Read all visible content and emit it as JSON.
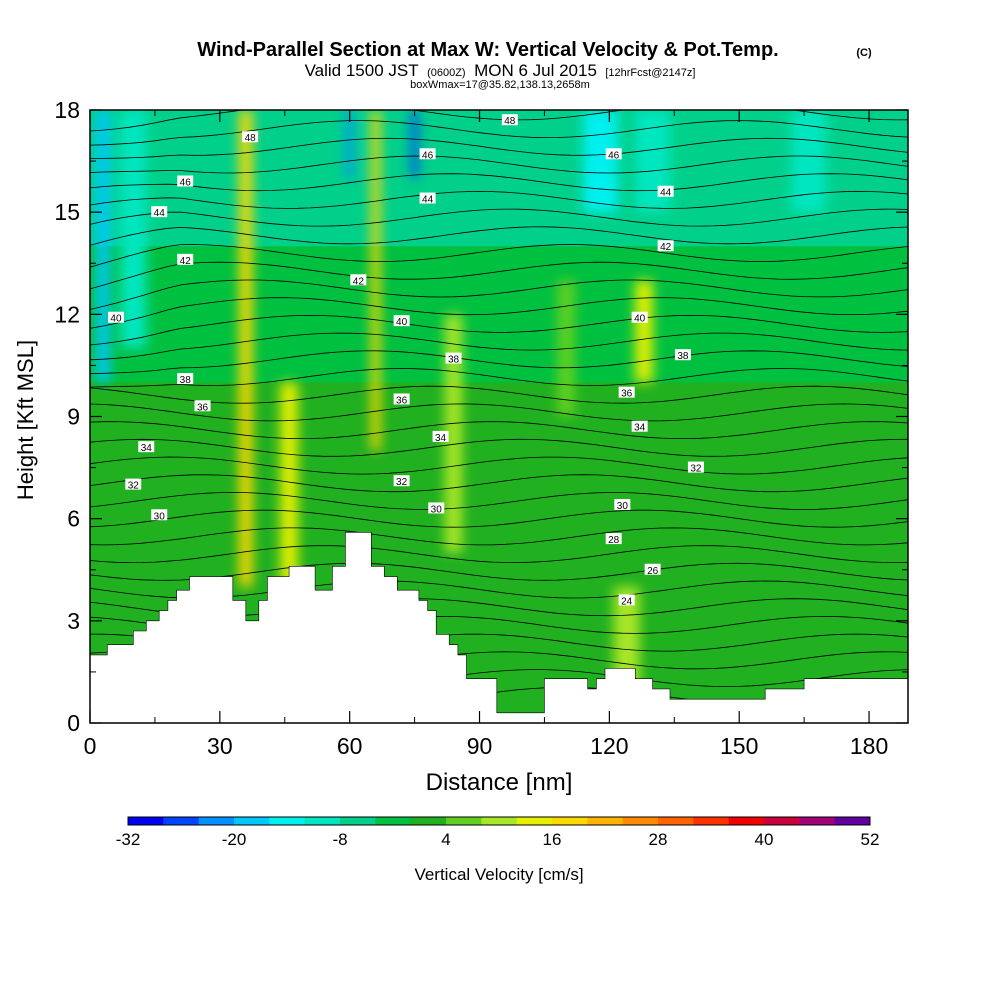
{
  "chart_data": {
    "type": "heatmap",
    "title": "Wind-Parallel Section at Max W: Vertical Velocity & Pot.Temp.",
    "title_badge": "(C)",
    "subtitle_prefix": "Valid 1500 JST",
    "subtitle_zulu": "(0600Z)",
    "subtitle_main": "MON 6 Jul 2015",
    "subtitle_fcst": "[12hrFcst@2147z]",
    "subtitle2": "boxWmax=17@35.82,138.13,2658m",
    "xlabel": "Distance [nm]",
    "ylabel": "Height [Kft MSL]",
    "xlim": [
      0,
      189
    ],
    "ylim": [
      0,
      18
    ],
    "x_ticks": [
      "0",
      "30",
      "60",
      "90",
      "120",
      "150",
      "180"
    ],
    "x_tick_values": [
      0,
      30,
      60,
      90,
      120,
      150,
      180
    ],
    "y_ticks": [
      "0",
      "3",
      "6",
      "9",
      "12",
      "15",
      "18"
    ],
    "y_tick_values": [
      0,
      3,
      6,
      9,
      12,
      15,
      18
    ],
    "colorbar": {
      "label": "Vertical Velocity [cm/s]",
      "tick_labels": [
        "-32",
        "-20",
        "-8",
        "4",
        "16",
        "28",
        "40",
        "52"
      ],
      "tick_values": [
        -32,
        -20,
        -8,
        4,
        16,
        28,
        40,
        52
      ],
      "levels": [
        -32,
        -28,
        -24,
        -20,
        -16,
        -12,
        -8,
        -4,
        0,
        4,
        8,
        12,
        16,
        20,
        24,
        28,
        32,
        36,
        40,
        44,
        48,
        52
      ],
      "colors": [
        "#0000f0",
        "#0044ff",
        "#0090ff",
        "#00c8ff",
        "#00f0f0",
        "#00e6c0",
        "#00d08a",
        "#00c040",
        "#20b020",
        "#60d020",
        "#a8e628",
        "#e6f000",
        "#ffd800",
        "#ffb400",
        "#ff8c00",
        "#ff6400",
        "#ff3200",
        "#f00000",
        "#c8003c",
        "#a00078",
        "#6000a0"
      ]
    },
    "vv_columns": [
      {
        "x": 3,
        "w": 3,
        "v": -20,
        "ytop": 18,
        "ybot": 10
      },
      {
        "x": 10,
        "w": 6,
        "v": -12,
        "ytop": 18,
        "ybot": 11
      },
      {
        "x": 36,
        "w": 3,
        "v": 18,
        "ytop": 18,
        "ybot": 4
      },
      {
        "x": 46,
        "w": 4,
        "v": 14,
        "ytop": 10,
        "ybot": 4
      },
      {
        "x": 60,
        "w": 1.5,
        "v": -24,
        "ytop": 18,
        "ybot": 16
      },
      {
        "x": 66,
        "w": 2,
        "v": 16,
        "ytop": 18,
        "ybot": 8
      },
      {
        "x": 75,
        "w": 1.5,
        "v": -26,
        "ytop": 18,
        "ybot": 16
      },
      {
        "x": 84,
        "w": 4,
        "v": 8,
        "ytop": 12,
        "ybot": 5
      },
      {
        "x": 110,
        "w": 4,
        "v": 4,
        "ytop": 13,
        "ybot": 9
      },
      {
        "x": 128,
        "w": 4,
        "v": 12,
        "ytop": 13,
        "ybot": 10
      },
      {
        "x": 130,
        "w": 8,
        "v": -10,
        "ytop": 18,
        "ybot": 15
      },
      {
        "x": 118,
        "w": 8,
        "v": -14,
        "ytop": 18,
        "ybot": 15
      },
      {
        "x": 166,
        "w": 8,
        "v": -12,
        "ytop": 18,
        "ybot": 15
      },
      {
        "x": 124,
        "w": 6,
        "v": 8,
        "ytop": 4,
        "ybot": 1
      }
    ],
    "terrain": [
      [
        0,
        2
      ],
      [
        4,
        2
      ],
      [
        4,
        2.3
      ],
      [
        10,
        2.3
      ],
      [
        10,
        2.7
      ],
      [
        13,
        2.7
      ],
      [
        13,
        3
      ],
      [
        16,
        3
      ],
      [
        16,
        3.3
      ],
      [
        18,
        3.3
      ],
      [
        18,
        3.6
      ],
      [
        20,
        3.6
      ],
      [
        20,
        3.9
      ],
      [
        23,
        3.9
      ],
      [
        23,
        4.3
      ],
      [
        33,
        4.3
      ],
      [
        33,
        3.6
      ],
      [
        36,
        3.6
      ],
      [
        36,
        3
      ],
      [
        39,
        3
      ],
      [
        39,
        3.6
      ],
      [
        41,
        3.6
      ],
      [
        41,
        4.3
      ],
      [
        46,
        4.3
      ],
      [
        46,
        4.6
      ],
      [
        52,
        4.6
      ],
      [
        52,
        3.9
      ],
      [
        56,
        3.9
      ],
      [
        56,
        4.6
      ],
      [
        59,
        4.6
      ],
      [
        59,
        5.6
      ],
      [
        65,
        5.6
      ],
      [
        65,
        4.6
      ],
      [
        68,
        4.6
      ],
      [
        68,
        4.3
      ],
      [
        71,
        4.3
      ],
      [
        71,
        3.9
      ],
      [
        76,
        3.9
      ],
      [
        76,
        3.6
      ],
      [
        78,
        3.6
      ],
      [
        78,
        3.3
      ],
      [
        80,
        3.3
      ],
      [
        80,
        2.6
      ],
      [
        83,
        2.6
      ],
      [
        83,
        2.3
      ],
      [
        85,
        2.3
      ],
      [
        85,
        2
      ],
      [
        87,
        2
      ],
      [
        87,
        1.3
      ],
      [
        94,
        1.3
      ],
      [
        94,
        0.3
      ],
      [
        105,
        0.3
      ],
      [
        105,
        1.3
      ],
      [
        115,
        1.3
      ],
      [
        115,
        1
      ],
      [
        117,
        1
      ],
      [
        117,
        1.3
      ],
      [
        119,
        1.3
      ],
      [
        119,
        1.6
      ],
      [
        126,
        1.6
      ],
      [
        126,
        1.3
      ],
      [
        130,
        1.3
      ],
      [
        130,
        1
      ],
      [
        134,
        1
      ],
      [
        134,
        0.7
      ],
      [
        156,
        0.7
      ],
      [
        156,
        1
      ],
      [
        165,
        1
      ],
      [
        165,
        1.3
      ],
      [
        189,
        1.3
      ]
    ],
    "theta_contours": [
      {
        "label": "24",
        "base": 3.8,
        "lx": 124,
        "ly": 3.6
      },
      {
        "label": "26",
        "base": 4.5,
        "lx": 130,
        "ly": 4.5
      },
      {
        "label": "28",
        "base": 5.3,
        "lx": 121,
        "ly": 5.4
      },
      {
        "label": "30",
        "base": 6.2,
        "lx": 16,
        "ly": 6.1
      },
      {
        "label": "30",
        "base": 6.2,
        "lx": 80,
        "ly": 6.3
      },
      {
        "label": "30",
        "base": 6.2,
        "lx": 123,
        "ly": 6.4
      },
      {
        "label": "32",
        "base": 7.1,
        "lx": 10,
        "ly": 7.0
      },
      {
        "label": "32",
        "base": 7.1,
        "lx": 72,
        "ly": 7.1
      },
      {
        "label": "32",
        "base": 7.1,
        "lx": 140,
        "ly": 7.5
      },
      {
        "label": "34",
        "base": 8.1,
        "lx": 13,
        "ly": 8.1
      },
      {
        "label": "34",
        "base": 8.1,
        "lx": 81,
        "ly": 8.4
      },
      {
        "label": "34",
        "base": 8.1,
        "lx": 127,
        "ly": 8.7
      },
      {
        "label": "36",
        "base": 9.3,
        "lx": 26,
        "ly": 9.3
      },
      {
        "label": "36",
        "base": 9.3,
        "lx": 72,
        "ly": 9.5
      },
      {
        "label": "36",
        "base": 9.3,
        "lx": 124,
        "ly": 9.7
      },
      {
        "label": "38",
        "base": 10.3,
        "lx": 22,
        "ly": 10.1
      },
      {
        "label": "38",
        "base": 10.3,
        "lx": 84,
        "ly": 10.7
      },
      {
        "label": "38",
        "base": 10.3,
        "lx": 137,
        "ly": 10.8
      },
      {
        "label": "40",
        "base": 11.7,
        "lx": 6,
        "ly": 11.9
      },
      {
        "label": "40",
        "base": 11.7,
        "lx": 72,
        "ly": 11.8
      },
      {
        "label": "40",
        "base": 11.7,
        "lx": 127,
        "ly": 11.9
      },
      {
        "label": "42",
        "base": 13.3,
        "lx": 22,
        "ly": 13.6
      },
      {
        "label": "42",
        "base": 13.3,
        "lx": 62,
        "ly": 13.0
      },
      {
        "label": "42",
        "base": 13.3,
        "lx": 133,
        "ly": 14.0
      },
      {
        "label": "44",
        "base": 15.0,
        "lx": 16,
        "ly": 15.0
      },
      {
        "label": "44",
        "base": 15.0,
        "lx": 78,
        "ly": 15.4
      },
      {
        "label": "44",
        "base": 15.0,
        "lx": 133,
        "ly": 15.6
      },
      {
        "label": "46",
        "base": 16.1,
        "lx": 22,
        "ly": 15.9
      },
      {
        "label": "46",
        "base": 16.1,
        "lx": 78,
        "ly": 16.7
      },
      {
        "label": "46",
        "base": 16.1,
        "lx": 121,
        "ly": 16.7
      },
      {
        "label": "48",
        "base": 17.3,
        "lx": 37,
        "ly": 17.2
      },
      {
        "label": "48",
        "base": 17.3,
        "lx": 97,
        "ly": 17.7
      }
    ]
  }
}
